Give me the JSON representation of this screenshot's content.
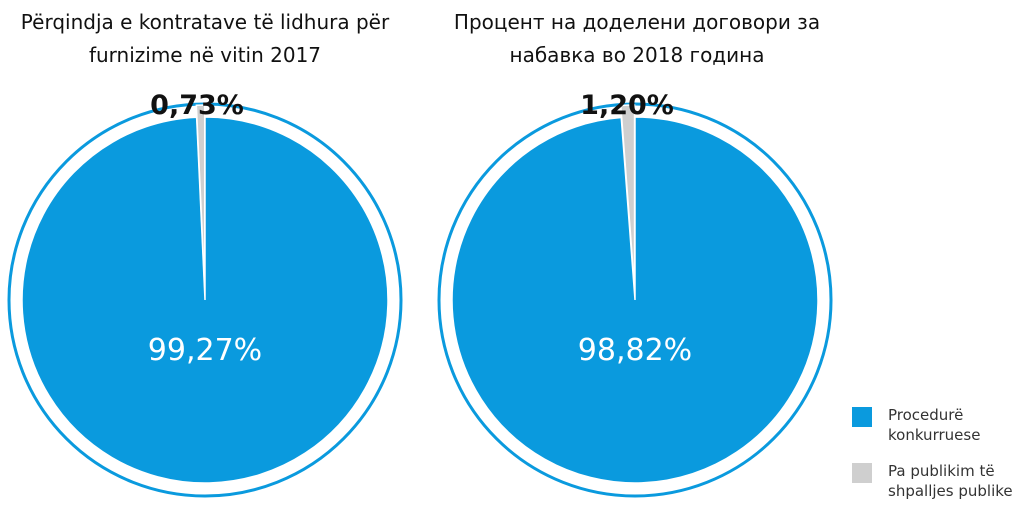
{
  "chart_data": [
    {
      "type": "pie",
      "title": "Përqindja e kontratave të lidhura për furnizime në vitin 2017",
      "values": [
        99.27,
        0.73
      ],
      "value_labels": [
        "99,27%",
        "0,73%"
      ]
    },
    {
      "type": "pie",
      "title": "Процент на доделени договори за набавка во 2018 година",
      "values": [
        98.82,
        1.2
      ],
      "value_labels": [
        "98,82%",
        "1,20%"
      ]
    }
  ],
  "legend": [
    {
      "name": "Procedurë konkurruese",
      "color": "#0a9ade"
    },
    {
      "name": "Pa publikim të shpalljes publike",
      "color": "#cfcfcf"
    }
  ]
}
